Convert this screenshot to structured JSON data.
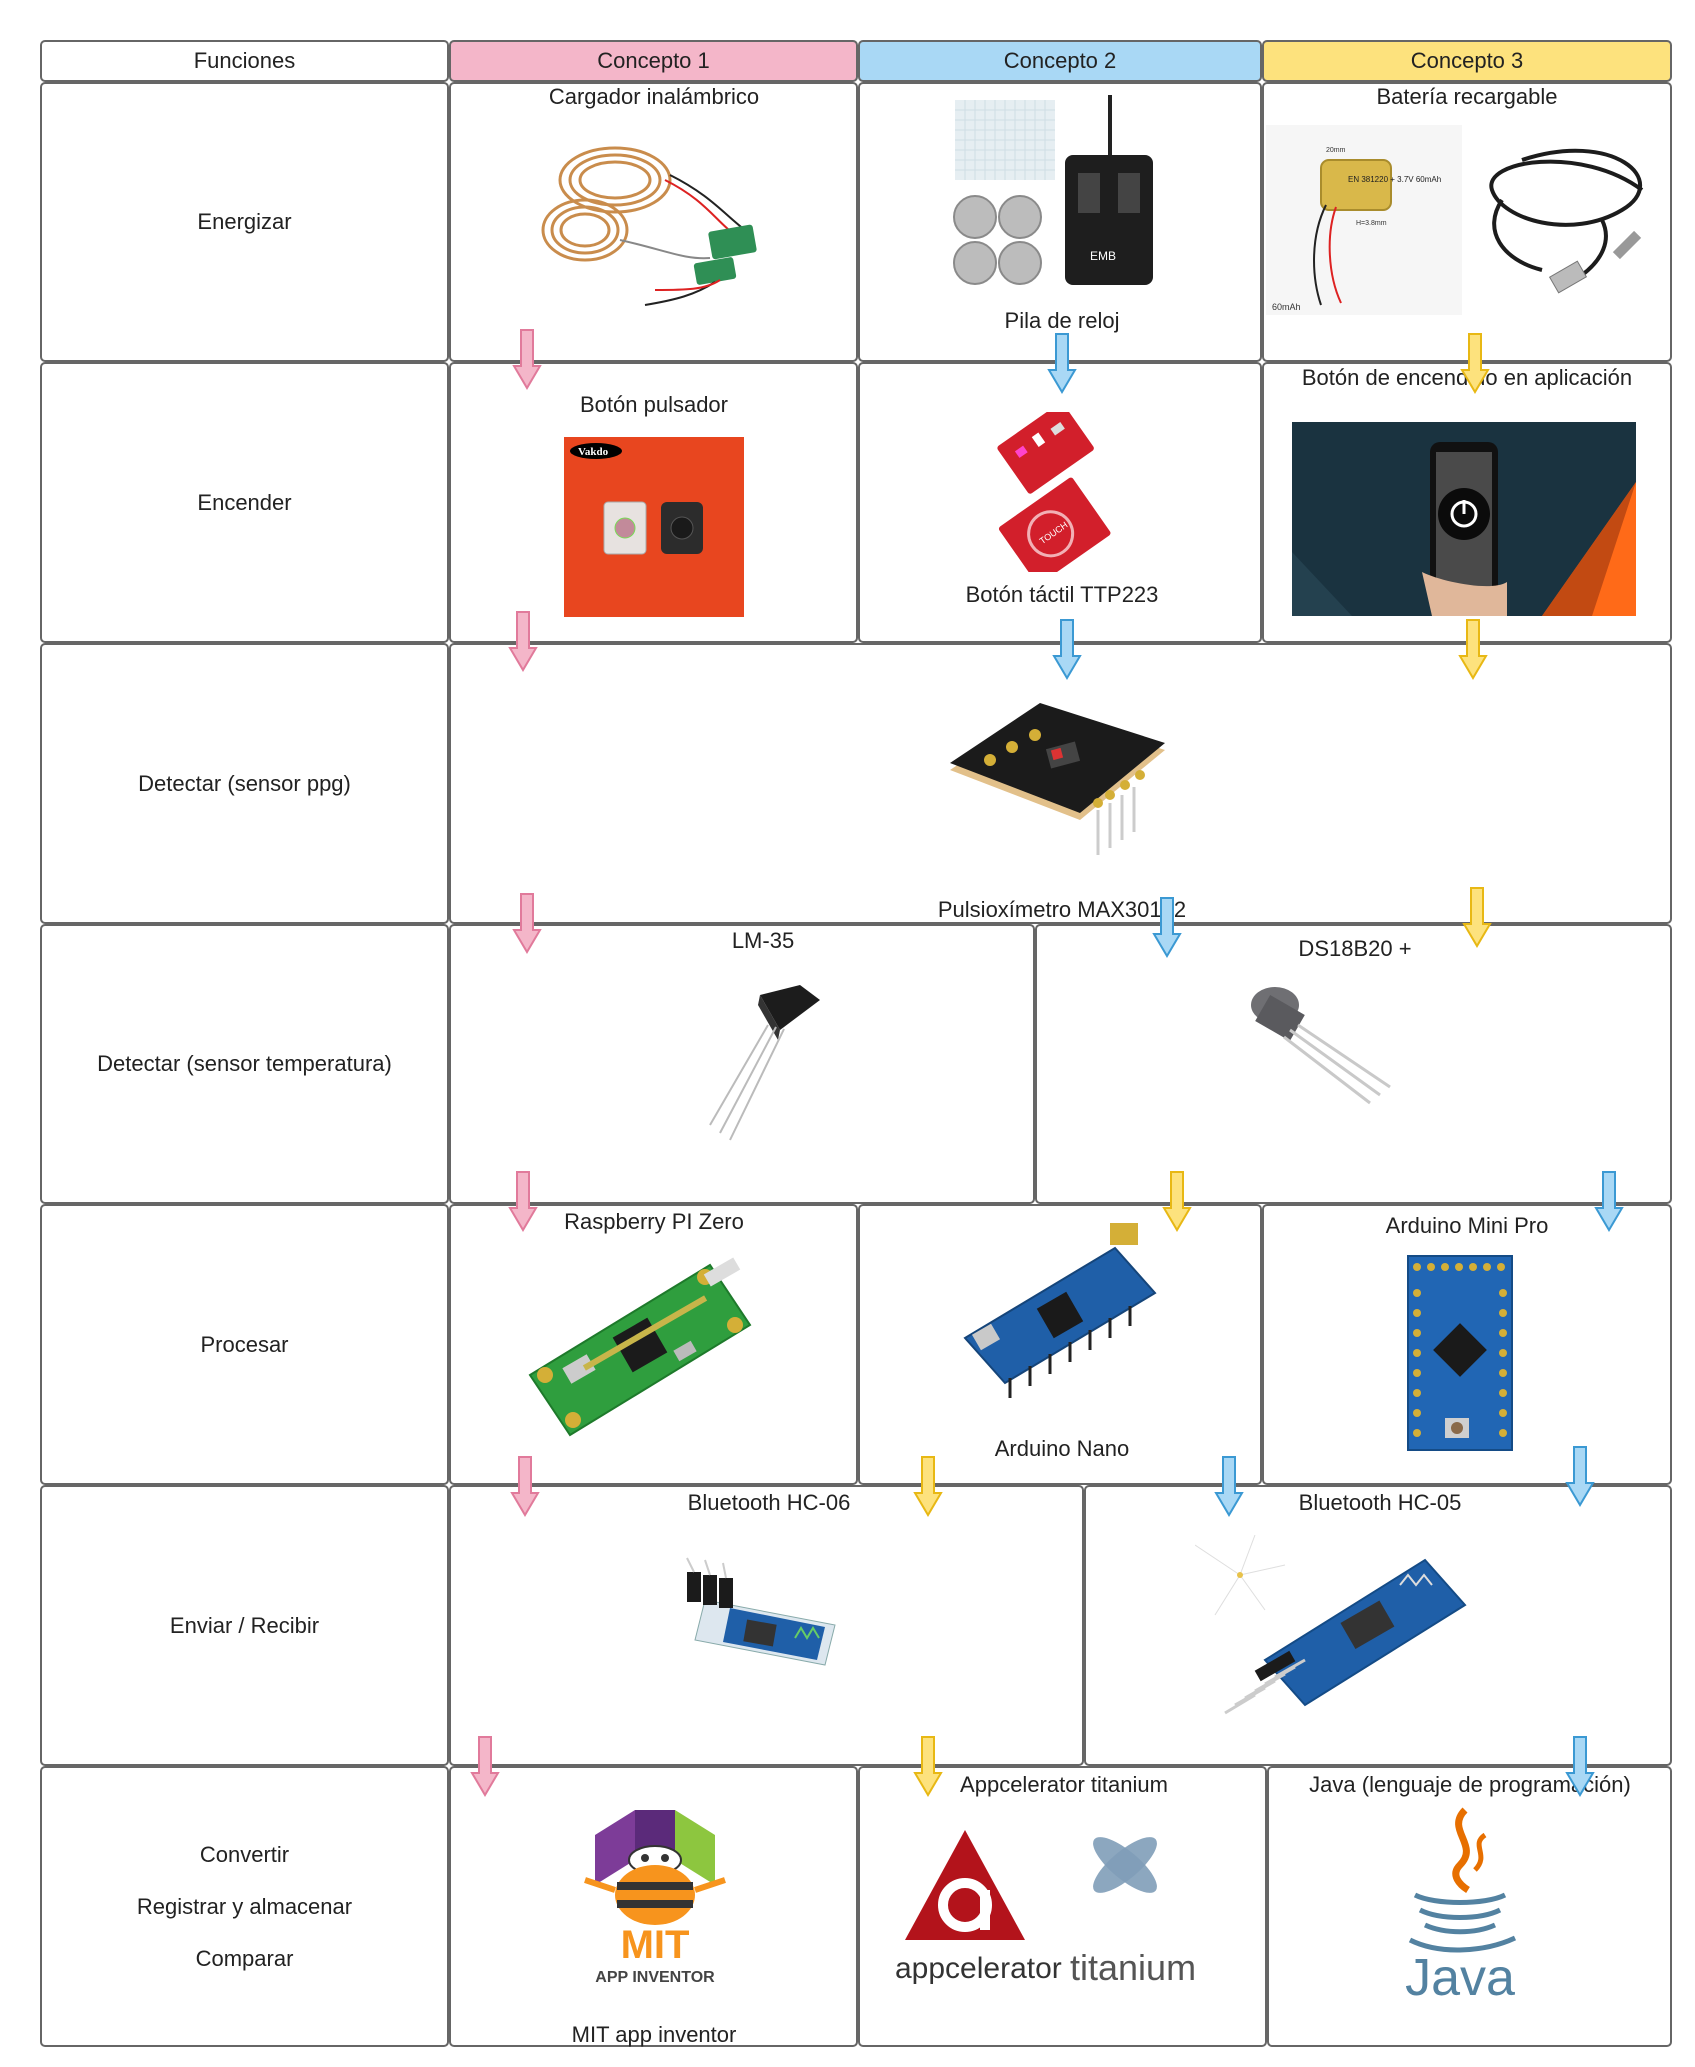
{
  "colors": {
    "concept1": "#f4b6c9",
    "concept2": "#a9d8f5",
    "concept3": "#fde27d",
    "pink_arrow": "#f08fb0",
    "blue_arrow": "#5eb6e8",
    "yellow_arrow": "#fbd23e"
  },
  "header": {
    "functions": "Funciones",
    "concept1": "Concepto 1",
    "concept2": "Concepto 2",
    "concept3": "Concepto 3"
  },
  "functions": {
    "energize": "Energizar",
    "power_on": "Encender",
    "detect_ppg": "Detectar (sensor ppg)",
    "detect_temp": "Detectar (sensor temperatura)",
    "process": "Procesar",
    "send_receive": "Enviar / Recibir",
    "convert": "Convertir",
    "register": "Registrar y almacenar",
    "compare": "Comparar"
  },
  "components": {
    "c1_energy": "Cargador inalámbrico",
    "c2_energy": "Pila de reloj",
    "c3_energy": "Batería recargable",
    "c1_power": "Botón pulsador",
    "c2_power": "Botón táctil TTP223",
    "c3_power": "Botón de encendido en aplicación",
    "ppg": "Pulsioxímetro MAX30102",
    "temp_a": "LM-35",
    "temp_b": "DS18B20 +",
    "c1_proc": "Raspberry PI Zero",
    "c2_proc": "Arduino Nano",
    "c3_proc": "Arduino Mini Pro",
    "bt_a": "Bluetooth HC-06",
    "bt_b": "Bluetooth HC-05",
    "c1_app": "MIT app inventor",
    "c2_app": "Appcelerator titanium",
    "c3_app": "Java (lenguaje de programación)"
  },
  "image_text": {
    "vakdo": "Vakdo",
    "battery_label": "EN 381220 + 3.7V 60mAh",
    "battery_mah": "60mAh",
    "battery_width": "20mm",
    "battery_height": "H=3.8mm",
    "touch": "TOUCH",
    "charger_brand": "EMB",
    "mit": "MIT",
    "app_inventor": "APP INVENTOR",
    "appcelerator": "appcelerator",
    "titanium": "titanium",
    "java": "Java"
  }
}
